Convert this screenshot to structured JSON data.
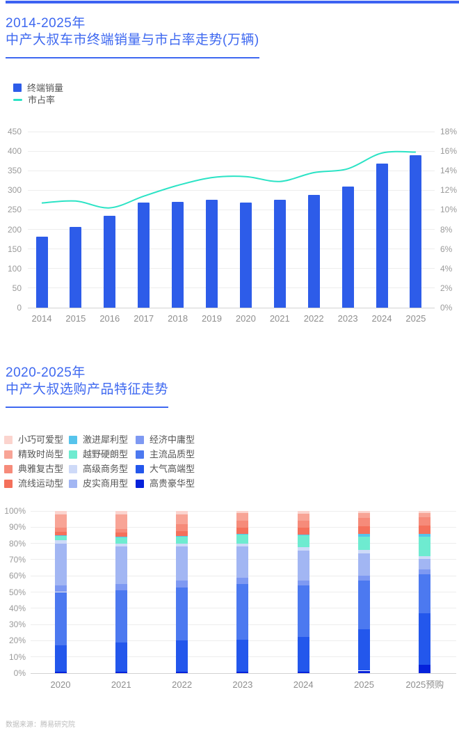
{
  "page": {
    "accent_color": "#3C62F2",
    "title_color": "#3E68F0",
    "footer": "数据来源：腾易研究院"
  },
  "chart1": {
    "title_line1": "2014-2025年",
    "title_line2": "中产大叔车市终端销量与市占率走势(万辆)",
    "legend": [
      {
        "label": "终端销量",
        "kind": "square",
        "color": "#2D5CE9"
      },
      {
        "label": "市占率",
        "kind": "line",
        "color": "#2BE3C5"
      }
    ]
  },
  "chart2": {
    "title_line1": "2020-2025年",
    "title_line2": "中产大叔选购产品特征走势"
  },
  "chart_data": [
    {
      "type": "bar",
      "subtype": "bar-plus-line-dual-axis",
      "title": "2014-2025年 中产大叔车市终端销量与市占率走势(万辆)",
      "categories": [
        "2014",
        "2015",
        "2016",
        "2017",
        "2018",
        "2019",
        "2020",
        "2021",
        "2022",
        "2023",
        "2024",
        "2025"
      ],
      "series": [
        {
          "name": "终端销量",
          "kind": "bar",
          "axis": "left",
          "color": "#2D5CE9",
          "values": [
            182,
            206,
            235,
            268,
            270,
            276,
            268,
            276,
            288,
            310,
            369,
            390
          ]
        },
        {
          "name": "市占率",
          "kind": "line",
          "axis": "right",
          "color": "#2BE3C5",
          "values": [
            10.7,
            10.9,
            10.2,
            11.4,
            12.5,
            13.3,
            13.4,
            12.9,
            13.8,
            14.2,
            15.8,
            15.9
          ]
        }
      ],
      "left_axis": {
        "min": 0,
        "max": 450,
        "step": 50,
        "suffix": "",
        "tick_labels": [
          "0",
          "50",
          "100",
          "150",
          "200",
          "250",
          "300",
          "350",
          "400",
          "450"
        ]
      },
      "right_axis": {
        "min": 0,
        "max": 18,
        "step": 2,
        "suffix": "%",
        "tick_labels": [
          "0%",
          "2%",
          "4%",
          "6%",
          "8%",
          "10%",
          "12%",
          "14%",
          "16%",
          "18%"
        ]
      },
      "grid": true,
      "legend_position": "top-left"
    },
    {
      "type": "bar",
      "subtype": "stacked-100-percent",
      "title": "2020-2025年 中产大叔选购产品特征走势",
      "categories": [
        "2020",
        "2021",
        "2022",
        "2023",
        "2024",
        "2025",
        "2025预购"
      ],
      "stack_order": "bottom-to-top",
      "series": [
        {
          "name": "高贵豪华型",
          "color": "#0522DB",
          "values": [
            1,
            1,
            1,
            1,
            1,
            1.5,
            5
          ]
        },
        {
          "name": "大气高端型",
          "color": "#2357EC",
          "values": [
            16,
            18,
            19,
            19.5,
            21.5,
            25.5,
            32
          ]
        },
        {
          "name": "主流品质型",
          "color": "#4C79F0",
          "values": [
            33,
            32,
            33,
            34.5,
            31.5,
            30,
            24
          ]
        },
        {
          "name": "经济中庸型",
          "color": "#7E99F2",
          "values": [
            4,
            4,
            4,
            4,
            3,
            3,
            3
          ]
        },
        {
          "name": "皮实商用型",
          "color": "#A2B6F3",
          "values": [
            26,
            23,
            21,
            19,
            18.5,
            14,
            6.5
          ]
        },
        {
          "name": "高级商务型",
          "color": "#CEDAF8",
          "values": [
            2,
            2,
            2,
            2,
            2,
            2,
            1.5
          ]
        },
        {
          "name": "越野硬朗型",
          "color": "#6EEBD0",
          "values": [
            2.5,
            3.5,
            4,
            5.5,
            7.5,
            8,
            12
          ]
        },
        {
          "name": "激进犀利型",
          "color": "#56C4EC",
          "values": [
            0.5,
            0.5,
            0.5,
            0.5,
            0.5,
            2,
            2
          ]
        },
        {
          "name": "流线运动型",
          "color": "#F4705B",
          "values": [
            2,
            2.5,
            3,
            3.5,
            4,
            4.5,
            5
          ]
        },
        {
          "name": "典雅复古型",
          "color": "#F68B7A",
          "values": [
            2.5,
            2.5,
            4.5,
            4.5,
            4.5,
            5,
            5
          ]
        },
        {
          "name": "精致时尚型",
          "color": "#F8A496",
          "values": [
            8.5,
            9,
            6,
            4.5,
            4.1,
            3,
            2.5
          ]
        },
        {
          "name": "小巧可爱型",
          "color": "#FBD4CE",
          "values": [
            2,
            2,
            2,
            1.5,
            1.9,
            1.5,
            1.5
          ]
        }
      ],
      "y_axis": {
        "min": 0,
        "max": 100,
        "step": 10,
        "suffix": "%",
        "tick_labels": [
          "0%",
          "10%",
          "20%",
          "30%",
          "40%",
          "50%",
          "60%",
          "70%",
          "80%",
          "90%",
          "100%"
        ]
      },
      "legend_display_order": [
        "小巧可爱型",
        "精致时尚型",
        "典雅复古型",
        "流线运动型",
        "激进犀利型",
        "越野硬朗型",
        "高级商务型",
        "皮实商用型",
        "经济中庸型",
        "主流品质型",
        "大气高端型",
        "高贵豪华型"
      ],
      "legend_position": "top-left"
    }
  ]
}
